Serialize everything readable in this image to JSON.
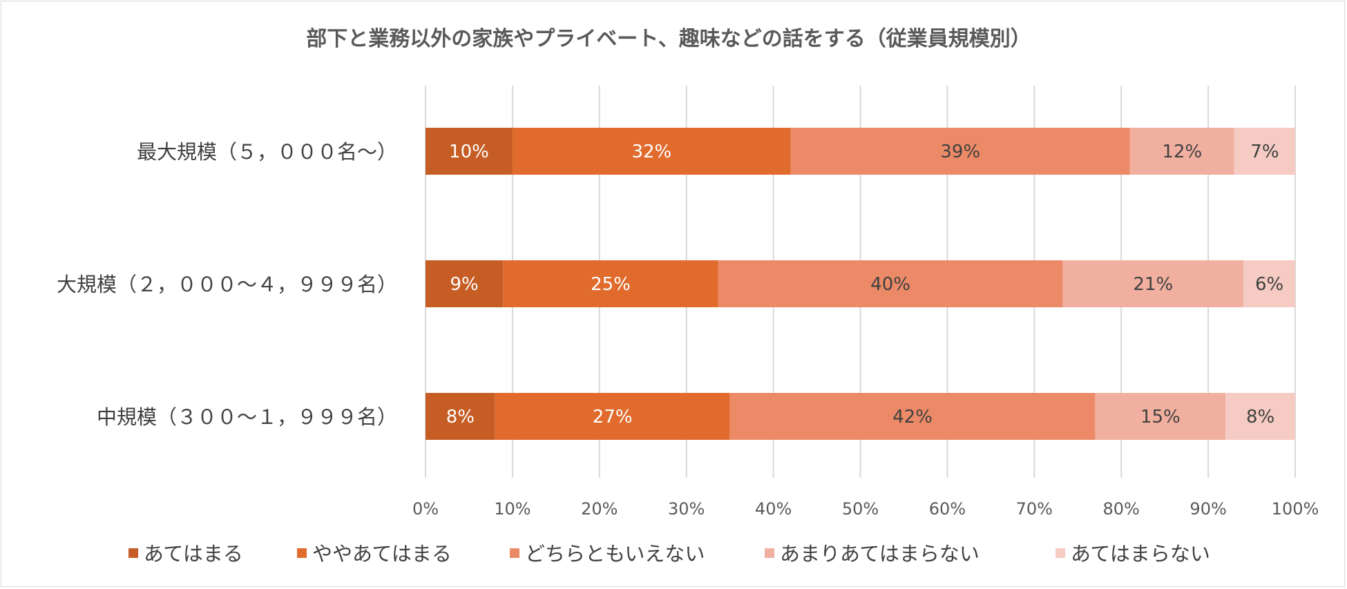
{
  "chart_data": {
    "type": "bar",
    "orientation": "horizontal",
    "stacked": "percent",
    "title": "部下と業務以外の家族やプライベート、趣味などの話をする（従業員規模別）",
    "categories": [
      "最大規模（５，０００名～）",
      "大規模（２，０００～４，９９９名）",
      "中規模（３００～１，９９９名）"
    ],
    "series": [
      {
        "name": "あてはまる",
        "color": "#c65d24",
        "labelColor": "#ffffff",
        "values": [
          10,
          9,
          8
        ],
        "labels": [
          "10%",
          "9%",
          "8%"
        ]
      },
      {
        "name": "ややあてはまる",
        "color": "#e06b2d",
        "labelColor": "#ffffff",
        "values": [
          32,
          25,
          27
        ],
        "labels": [
          "32%",
          "25%",
          "27%"
        ]
      },
      {
        "name": "どちらともいえない",
        "color": "#ec8a67",
        "labelColor": "#404040",
        "values": [
          39,
          40,
          42
        ],
        "labels": [
          "39%",
          "40%",
          "42%"
        ]
      },
      {
        "name": "あまりあてはまらない",
        "color": "#f1b09f",
        "labelColor": "#404040",
        "values": [
          12,
          21,
          15
        ],
        "labels": [
          "12%",
          "21%",
          "15%"
        ]
      },
      {
        "name": "あてはまらない",
        "color": "#f5cbc3",
        "labelColor": "#404040",
        "values": [
          7,
          6,
          8
        ],
        "labels": [
          "7%",
          "6%",
          "8%"
        ]
      }
    ],
    "xlim": [
      0,
      100
    ],
    "xticks": [
      "0%",
      "10%",
      "20%",
      "30%",
      "40%",
      "50%",
      "60%",
      "70%",
      "80%",
      "90%",
      "100%"
    ],
    "grid": true,
    "legend_position": "bottom"
  }
}
